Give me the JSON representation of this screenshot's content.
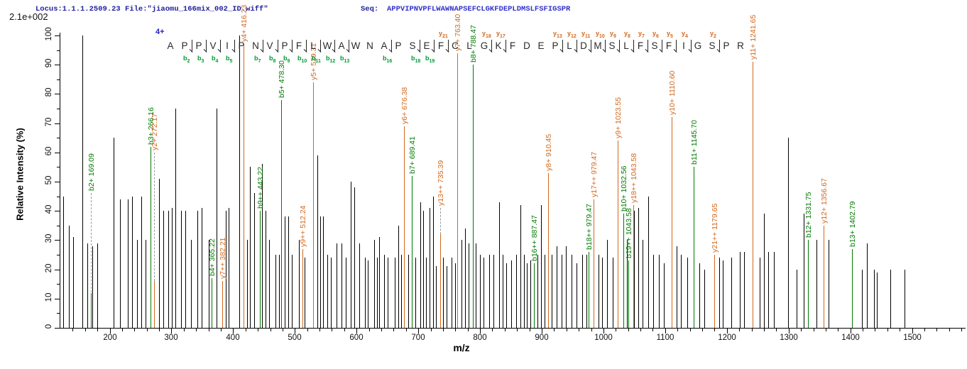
{
  "header": {
    "locus_file": "Locus:1.1.1.2509.23 File:\"jiaomu_166mix_002_ID.wiff\"",
    "seq_label": "Seq:",
    "sequence": "APPVIPNVPFLWAWNAPSEFCLGKFDEPLDMSLFSFIGSPR"
  },
  "scale_note": "2.1e+002",
  "charge_state": "4+",
  "colors": {
    "b_ion": "#007a00",
    "y_ion": "#d2691e",
    "peak": "#000000",
    "b_marker": "#009933",
    "y_marker": "#d2691e",
    "locus_text": "#1f1f9e",
    "sequence_text": "#3333cc"
  },
  "peptide": {
    "sequence": "APPVIPNVPFLWAWNAPSEFCLGKFDEPLDMSLFSFIGSPR",
    "b_ions_found": [
      2,
      3,
      4,
      5,
      7,
      8,
      9,
      10,
      11,
      12,
      13,
      16,
      18,
      19
    ],
    "y_ions_found": [
      2,
      4,
      5,
      6,
      7,
      8,
      9,
      10,
      11,
      12,
      13,
      17,
      18,
      21
    ]
  },
  "chart_data": {
    "type": "bar",
    "title": "",
    "xlabel": "m/z",
    "ylabel": "Relative  Intensity (%)",
    "xlim": [
      120,
      1581
    ],
    "ylim": [
      0,
      100
    ],
    "x_ticks": [
      200,
      300,
      400,
      500,
      600,
      700,
      800,
      900,
      1000,
      1100,
      1200,
      1300,
      1400,
      1500
    ],
    "x_minor_step": 20,
    "y_ticks": [
      0,
      10,
      20,
      30,
      40,
      50,
      60,
      70,
      80,
      90,
      100
    ],
    "y_minor_step": 5,
    "legend": "none",
    "annotated_peaks": [
      {
        "series": "b",
        "ion": "b2+",
        "mz": 169.09,
        "intensity": 12,
        "label": "b2+ 169.09",
        "label_y": 46
      },
      {
        "series": "b",
        "ion": "b3+",
        "mz": 266.16,
        "intensity": 62,
        "label": "b3+ 266.16",
        "label_y": 62
      },
      {
        "series": "y",
        "ion": "y2+",
        "mz": 272.17,
        "intensity": 16,
        "label": "y2+ 272.17",
        "label_y": 60
      },
      {
        "series": "b",
        "ion": "b4+",
        "mz": 365.22,
        "intensity": 17,
        "label": "b4+ 365.22",
        "label_y": 17
      },
      {
        "series": "y",
        "ion": "y7++",
        "mz": 382.21,
        "intensity": 16,
        "label": "y7++ 382.21",
        "label_y": 16
      },
      {
        "series": "y",
        "ion": "y4+",
        "mz": 416.23,
        "intensity": 97,
        "label": "y4+ 416.23",
        "label_y": 97
      },
      {
        "series": "b",
        "ion": "b9++",
        "mz": 443.22,
        "intensity": 40,
        "label": "b9++ 443.22",
        "label_y": 40
      },
      {
        "series": "b",
        "ion": "b5+",
        "mz": 478.3,
        "intensity": 78,
        "label": "b5+ 478.30",
        "label_y": 78
      },
      {
        "series": "y",
        "ion": "y9++",
        "mz": 512.24,
        "intensity": 27,
        "label": "y9++ 512.24",
        "label_y": 27
      },
      {
        "series": "y",
        "ion": "y5+",
        "mz": 529.31,
        "intensity": 84,
        "label": "y5+ 529.31",
        "label_y": 84
      },
      {
        "series": "y",
        "ion": "y6+",
        "mz": 676.38,
        "intensity": 69,
        "label": "y6+ 676.38",
        "label_y": 69
      },
      {
        "series": "b",
        "ion": "b7+",
        "mz": 689.41,
        "intensity": 52,
        "label": "b7+ 689.41",
        "label_y": 52
      },
      {
        "series": "y",
        "ion": "y13++",
        "mz": 735.39,
        "intensity": 32,
        "label": "y13++ 735.39",
        "label_y": 41
      },
      {
        "series": "y",
        "ion": "y7+",
        "mz": 763.4,
        "intensity": 94,
        "label": "y7+ 763.40",
        "label_y": 94
      },
      {
        "series": "b",
        "ion": "b8+",
        "mz": 788.47,
        "intensity": 90,
        "label": "b8+ 788.47",
        "label_y": 90
      },
      {
        "series": "b",
        "ion": "b16++",
        "mz": 887.47,
        "intensity": 22,
        "label": "b16++ 887.47",
        "label_y": 22
      },
      {
        "series": "y",
        "ion": "y8+",
        "mz": 910.45,
        "intensity": 53,
        "label": "y8+ 910.45",
        "label_y": 53
      },
      {
        "series": "b",
        "ion": "b18++",
        "mz": 979.47,
        "intensity": 26,
        "label": "b18++ 979.47",
        "label_y": 26,
        "dx": -3
      },
      {
        "series": "y",
        "ion": "y17++",
        "mz": 979.47,
        "intensity": 44,
        "label": "y17++ 979.47",
        "label_y": 44,
        "dx": 4
      },
      {
        "series": "y",
        "ion": "y9+",
        "mz": 1023.55,
        "intensity": 64,
        "label": "y9+ 1023.55",
        "label_y": 64
      },
      {
        "series": "b",
        "ion": "b10+",
        "mz": 1032.56,
        "intensity": 39,
        "label": "b10+ 1032.56",
        "label_y": 39
      },
      {
        "series": "b",
        "ion": "b19++",
        "mz": 1043.58,
        "intensity": 23,
        "label": "b19++ 1043.58",
        "label_y": 23,
        "dx": -3
      },
      {
        "series": "y",
        "ion": "y18++",
        "mz": 1043.58,
        "intensity": 42,
        "label": "y18++ 1043.58",
        "label_y": 42,
        "dx": 4
      },
      {
        "series": "y",
        "ion": "y10+",
        "mz": 1110.6,
        "intensity": 72,
        "label": "y10+ 1110.60",
        "label_y": 72
      },
      {
        "series": "b",
        "ion": "b11+",
        "mz": 1145.7,
        "intensity": 55,
        "label": "b11+ 1145.70",
        "label_y": 55
      },
      {
        "series": "y",
        "ion": "y21++",
        "mz": 1179.65,
        "intensity": 25,
        "label": "y21++ 1179.65",
        "label_y": 25
      },
      {
        "series": "y",
        "ion": "y11+",
        "mz": 1241.65,
        "intensity": 91,
        "label": "y11+ 1241.65",
        "label_y": 91
      },
      {
        "series": "b",
        "ion": "b12+",
        "mz": 1331.75,
        "intensity": 30,
        "label": "b12+ 1331.75",
        "label_y": 30
      },
      {
        "series": "y",
        "ion": "y12+",
        "mz": 1356.67,
        "intensity": 35,
        "label": "y12+ 1356.67",
        "label_y": 35
      },
      {
        "series": "b",
        "ion": "b13+",
        "mz": 1402.79,
        "intensity": 27,
        "label": "b13+ 1402.79",
        "label_y": 27
      }
    ],
    "noise_peaks": [
      [
        125,
        45
      ],
      [
        134,
        35
      ],
      [
        141,
        31
      ],
      [
        156,
        100
      ],
      [
        164,
        29
      ],
      [
        172,
        28
      ],
      [
        180,
        29
      ],
      [
        206,
        65
      ],
      [
        217,
        44
      ],
      [
        229,
        44
      ],
      [
        236,
        45
      ],
      [
        244,
        30
      ],
      [
        251,
        45
      ],
      [
        258,
        30
      ],
      [
        280,
        51
      ],
      [
        287,
        40
      ],
      [
        295,
        40
      ],
      [
        301,
        41
      ],
      [
        306,
        75
      ],
      [
        315,
        40
      ],
      [
        323,
        40
      ],
      [
        332,
        30
      ],
      [
        342,
        40
      ],
      [
        349,
        41
      ],
      [
        360,
        30
      ],
      [
        373,
        75
      ],
      [
        388,
        40
      ],
      [
        393,
        41
      ],
      [
        410,
        100
      ],
      [
        422,
        30
      ],
      [
        427,
        55
      ],
      [
        434,
        46
      ],
      [
        447,
        56
      ],
      [
        452,
        40
      ],
      [
        458,
        30
      ],
      [
        469,
        25
      ],
      [
        474,
        25
      ],
      [
        484,
        38
      ],
      [
        489,
        38
      ],
      [
        495,
        25
      ],
      [
        507,
        30
      ],
      [
        516,
        24
      ],
      [
        536,
        59
      ],
      [
        541,
        38
      ],
      [
        546,
        38
      ],
      [
        552,
        25
      ],
      [
        558,
        24
      ],
      [
        568,
        29
      ],
      [
        575,
        29
      ],
      [
        583,
        24
      ],
      [
        590,
        50
      ],
      [
        596,
        48
      ],
      [
        604,
        29
      ],
      [
        613,
        24
      ],
      [
        618,
        23
      ],
      [
        628,
        30
      ],
      [
        633,
        24
      ],
      [
        637,
        31
      ],
      [
        645,
        25
      ],
      [
        650,
        24
      ],
      [
        662,
        24
      ],
      [
        668,
        35
      ],
      [
        672,
        25
      ],
      [
        684,
        25
      ],
      [
        695,
        24
      ],
      [
        703,
        43
      ],
      [
        708,
        40
      ],
      [
        712,
        24
      ],
      [
        718,
        41
      ],
      [
        724,
        45
      ],
      [
        729,
        21
      ],
      [
        740,
        24
      ],
      [
        746,
        21
      ],
      [
        754,
        24
      ],
      [
        760,
        22
      ],
      [
        770,
        30
      ],
      [
        776,
        34
      ],
      [
        781,
        29
      ],
      [
        793,
        29
      ],
      [
        800,
        25
      ],
      [
        806,
        24
      ],
      [
        815,
        25
      ],
      [
        822,
        25
      ],
      [
        831,
        43
      ],
      [
        837,
        25
      ],
      [
        843,
        22
      ],
      [
        851,
        23
      ],
      [
        858,
        25
      ],
      [
        865,
        42
      ],
      [
        871,
        25
      ],
      [
        876,
        22
      ],
      [
        882,
        23
      ],
      [
        893,
        25
      ],
      [
        899,
        42
      ],
      [
        904,
        25
      ],
      [
        916,
        25
      ],
      [
        924,
        28
      ],
      [
        932,
        25
      ],
      [
        939,
        28
      ],
      [
        948,
        25
      ],
      [
        956,
        22
      ],
      [
        965,
        25
      ],
      [
        973,
        25
      ],
      [
        992,
        25
      ],
      [
        998,
        24
      ],
      [
        1006,
        30
      ],
      [
        1015,
        24
      ],
      [
        1038,
        30
      ],
      [
        1049,
        40
      ],
      [
        1056,
        41
      ],
      [
        1063,
        30
      ],
      [
        1072,
        45
      ],
      [
        1081,
        25
      ],
      [
        1090,
        25
      ],
      [
        1098,
        22
      ],
      [
        1118,
        28
      ],
      [
        1126,
        25
      ],
      [
        1136,
        24
      ],
      [
        1155,
        22
      ],
      [
        1163,
        20
      ],
      [
        1187,
        24
      ],
      [
        1193,
        23
      ],
      [
        1207,
        24
      ],
      [
        1221,
        26
      ],
      [
        1228,
        26
      ],
      [
        1253,
        24
      ],
      [
        1260,
        39
      ],
      [
        1267,
        26
      ],
      [
        1276,
        26
      ],
      [
        1299,
        65
      ],
      [
        1313,
        20
      ],
      [
        1325,
        39
      ],
      [
        1345,
        30
      ],
      [
        1365,
        30
      ],
      [
        1419,
        20
      ],
      [
        1427,
        29
      ],
      [
        1438,
        20
      ],
      [
        1443,
        19
      ],
      [
        1465,
        20
      ],
      [
        1488,
        20
      ]
    ]
  }
}
